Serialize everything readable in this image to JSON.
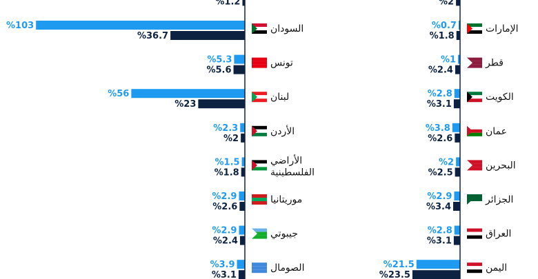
{
  "chart_data": [
    {
      "type": "bar",
      "orientation": "horizontal",
      "categories": [
        null,
        "السودان",
        "تونس",
        "لبنان",
        "الأردن",
        "الأراضي الفلسطينية",
        "موريتانيا",
        "جيبوتي",
        "الصومال"
      ],
      "series": [
        {
          "color": "#1e9bf0",
          "values": [
            null,
            103,
            5.3,
            56,
            2.3,
            1.5,
            2.9,
            2.9,
            3.9
          ],
          "value_labels": [
            null,
            "%103",
            "%5.3",
            "%56",
            "%2.3",
            "%1.5",
            "%2.9",
            "%2.9",
            "%3.9"
          ]
        },
        {
          "color": "#0d2240",
          "values": [
            1.2,
            36.7,
            5.6,
            23,
            2,
            1.8,
            2.6,
            2.4,
            3.1
          ],
          "value_labels": [
            "%1.2",
            "%36.7",
            "%5.6",
            "%23",
            "%2",
            "%1.8",
            "%2.6",
            "%2.4",
            "%3.1"
          ]
        }
      ]
    },
    {
      "type": "bar",
      "orientation": "horizontal",
      "categories": [
        null,
        "الإمارات",
        "قطر",
        "الكويت",
        "عمان",
        "البحرين",
        "الجزائر",
        "العراق",
        "اليمن"
      ],
      "series": [
        {
          "color": "#1e9bf0",
          "values": [
            null,
            0.7,
            1,
            2.8,
            3.8,
            2,
            2.9,
            2.8,
            21.5
          ],
          "value_labels": [
            null,
            "%0.7",
            "%1",
            "%2.8",
            "%3.8",
            "%2",
            "%2.9",
            "%2.8",
            "%21.5"
          ]
        },
        {
          "color": "#0d2240",
          "values": [
            2,
            1.8,
            2.4,
            3.1,
            2.6,
            2.5,
            3.4,
            3.1,
            23.5
          ],
          "value_labels": [
            "%2",
            "%1.8",
            "%2.4",
            "%3.1",
            "%2.6",
            "%2.5",
            "%3.4",
            "%3.1",
            "%23.5"
          ]
        }
      ]
    }
  ]
}
